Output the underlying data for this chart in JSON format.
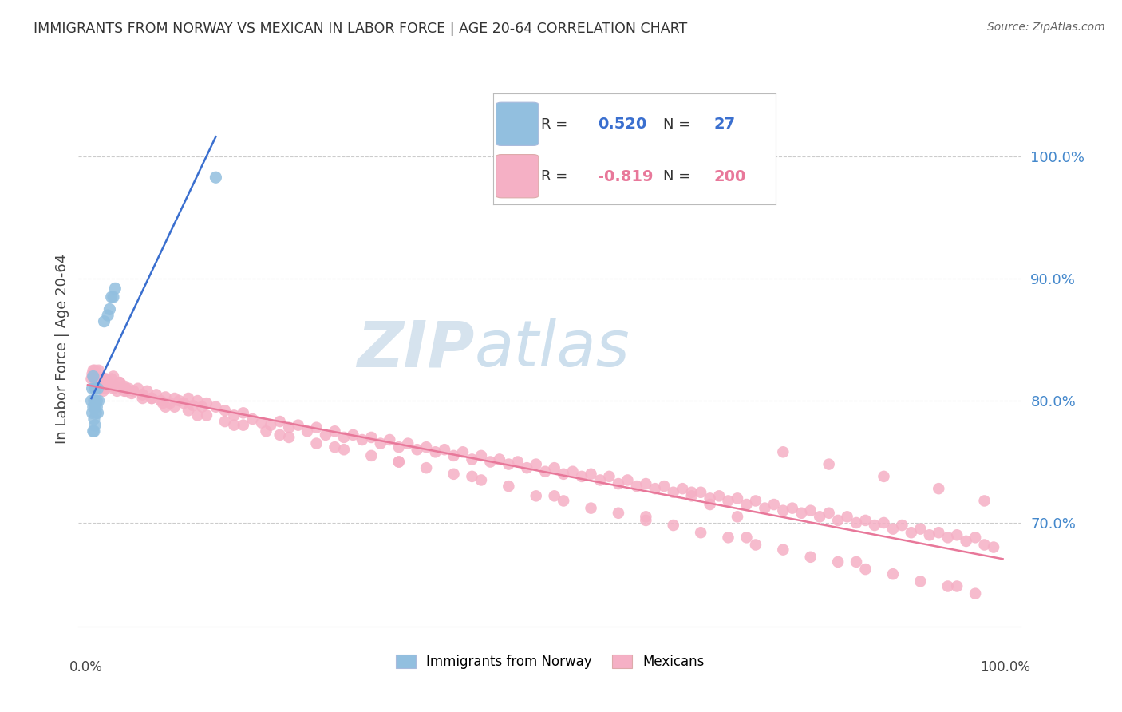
{
  "title": "IMMIGRANTS FROM NORWAY VS MEXICAN IN LABOR FORCE | AGE 20-64 CORRELATION CHART",
  "source": "Source: ZipAtlas.com",
  "ylabel": "In Labor Force | Age 20-64",
  "ytick_labels": [
    "70.0%",
    "80.0%",
    "90.0%",
    "100.0%"
  ],
  "ytick_values": [
    0.7,
    0.8,
    0.9,
    1.0
  ],
  "xlim": [
    -0.01,
    1.02
  ],
  "ylim": [
    0.615,
    1.07
  ],
  "norway_R": 0.52,
  "norway_N": 27,
  "mexico_R": -0.819,
  "mexico_N": 200,
  "norway_color": "#92bfdf",
  "mexico_color": "#f5b0c5",
  "norway_line_color": "#3a6fcf",
  "mexico_line_color": "#e8789a",
  "watermark_zip": "ZIP",
  "watermark_atlas": "atlas",
  "background_color": "#ffffff",
  "grid_color": "#cccccc",
  "legend_border_color": "#bbbbbb",
  "title_color": "#333333",
  "source_color": "#666666",
  "ytick_color": "#4488cc",
  "norway_x": [
    0.004,
    0.005,
    0.005,
    0.006,
    0.006,
    0.007,
    0.007,
    0.008,
    0.008,
    0.008,
    0.009,
    0.009,
    0.01,
    0.01,
    0.011,
    0.011,
    0.012,
    0.006,
    0.007,
    0.008,
    0.018,
    0.022,
    0.024,
    0.026,
    0.028,
    0.03,
    0.14
  ],
  "norway_y": [
    0.8,
    0.79,
    0.81,
    0.795,
    0.82,
    0.785,
    0.8,
    0.795,
    0.81,
    0.8,
    0.79,
    0.81,
    0.795,
    0.8,
    0.79,
    0.81,
    0.8,
    0.775,
    0.775,
    0.78,
    0.865,
    0.87,
    0.875,
    0.885,
    0.885,
    0.892,
    0.983
  ],
  "mexico_x": [
    0.004,
    0.005,
    0.006,
    0.007,
    0.008,
    0.009,
    0.01,
    0.011,
    0.012,
    0.013,
    0.014,
    0.015,
    0.016,
    0.017,
    0.018,
    0.019,
    0.02,
    0.022,
    0.024,
    0.026,
    0.028,
    0.03,
    0.032,
    0.035,
    0.038,
    0.04,
    0.042,
    0.045,
    0.048,
    0.05,
    0.055,
    0.06,
    0.065,
    0.07,
    0.075,
    0.08,
    0.085,
    0.09,
    0.095,
    0.1,
    0.105,
    0.11,
    0.115,
    0.12,
    0.125,
    0.13,
    0.14,
    0.15,
    0.16,
    0.17,
    0.18,
    0.19,
    0.2,
    0.21,
    0.22,
    0.23,
    0.24,
    0.25,
    0.26,
    0.27,
    0.28,
    0.29,
    0.3,
    0.31,
    0.32,
    0.33,
    0.34,
    0.35,
    0.36,
    0.37,
    0.38,
    0.39,
    0.4,
    0.41,
    0.42,
    0.43,
    0.44,
    0.45,
    0.46,
    0.47,
    0.48,
    0.49,
    0.5,
    0.51,
    0.52,
    0.53,
    0.54,
    0.55,
    0.56,
    0.57,
    0.58,
    0.59,
    0.6,
    0.61,
    0.62,
    0.63,
    0.64,
    0.65,
    0.66,
    0.67,
    0.68,
    0.69,
    0.7,
    0.71,
    0.72,
    0.73,
    0.74,
    0.75,
    0.76,
    0.77,
    0.78,
    0.79,
    0.8,
    0.81,
    0.82,
    0.83,
    0.84,
    0.85,
    0.86,
    0.87,
    0.88,
    0.89,
    0.9,
    0.91,
    0.92,
    0.93,
    0.94,
    0.95,
    0.96,
    0.97,
    0.98,
    0.99,
    0.007,
    0.012,
    0.018,
    0.022,
    0.028,
    0.035,
    0.042,
    0.05,
    0.06,
    0.07,
    0.082,
    0.095,
    0.11,
    0.13,
    0.15,
    0.17,
    0.195,
    0.22,
    0.25,
    0.28,
    0.31,
    0.34,
    0.37,
    0.4,
    0.43,
    0.46,
    0.49,
    0.52,
    0.55,
    0.58,
    0.61,
    0.64,
    0.67,
    0.7,
    0.73,
    0.76,
    0.79,
    0.82,
    0.85,
    0.88,
    0.91,
    0.94,
    0.97,
    0.008,
    0.015,
    0.025,
    0.04,
    0.06,
    0.085,
    0.12,
    0.16,
    0.21,
    0.27,
    0.34,
    0.42,
    0.51,
    0.61,
    0.72,
    0.84,
    0.95,
    0.66,
    0.68,
    0.71,
    0.76,
    0.81,
    0.87,
    0.93,
    0.98
  ],
  "mexico_y": [
    0.818,
    0.822,
    0.825,
    0.82,
    0.818,
    0.815,
    0.82,
    0.812,
    0.816,
    0.819,
    0.81,
    0.815,
    0.812,
    0.808,
    0.815,
    0.81,
    0.818,
    0.815,
    0.812,
    0.818,
    0.81,
    0.812,
    0.808,
    0.815,
    0.81,
    0.812,
    0.808,
    0.81,
    0.806,
    0.808,
    0.81,
    0.805,
    0.808,
    0.802,
    0.805,
    0.8,
    0.803,
    0.798,
    0.802,
    0.8,
    0.798,
    0.802,
    0.796,
    0.8,
    0.795,
    0.798,
    0.795,
    0.792,
    0.788,
    0.79,
    0.785,
    0.782,
    0.78,
    0.783,
    0.778,
    0.78,
    0.775,
    0.778,
    0.772,
    0.775,
    0.77,
    0.772,
    0.768,
    0.77,
    0.765,
    0.768,
    0.762,
    0.765,
    0.76,
    0.762,
    0.758,
    0.76,
    0.755,
    0.758,
    0.752,
    0.755,
    0.75,
    0.752,
    0.748,
    0.75,
    0.745,
    0.748,
    0.742,
    0.745,
    0.74,
    0.742,
    0.738,
    0.74,
    0.735,
    0.738,
    0.732,
    0.735,
    0.73,
    0.732,
    0.728,
    0.73,
    0.725,
    0.728,
    0.722,
    0.725,
    0.72,
    0.722,
    0.718,
    0.72,
    0.715,
    0.718,
    0.712,
    0.715,
    0.71,
    0.712,
    0.708,
    0.71,
    0.705,
    0.708,
    0.702,
    0.705,
    0.7,
    0.702,
    0.698,
    0.7,
    0.695,
    0.698,
    0.692,
    0.695,
    0.69,
    0.692,
    0.688,
    0.69,
    0.685,
    0.688,
    0.682,
    0.68,
    0.82,
    0.825,
    0.818,
    0.815,
    0.82,
    0.815,
    0.81,
    0.808,
    0.805,
    0.802,
    0.798,
    0.795,
    0.792,
    0.788,
    0.783,
    0.78,
    0.775,
    0.77,
    0.765,
    0.76,
    0.755,
    0.75,
    0.745,
    0.74,
    0.735,
    0.73,
    0.722,
    0.718,
    0.712,
    0.708,
    0.702,
    0.698,
    0.692,
    0.688,
    0.682,
    0.678,
    0.672,
    0.668,
    0.662,
    0.658,
    0.652,
    0.648,
    0.642,
    0.825,
    0.818,
    0.812,
    0.808,
    0.802,
    0.795,
    0.788,
    0.78,
    0.772,
    0.762,
    0.75,
    0.738,
    0.722,
    0.705,
    0.688,
    0.668,
    0.648,
    0.725,
    0.715,
    0.705,
    0.758,
    0.748,
    0.738,
    0.728,
    0.718
  ]
}
